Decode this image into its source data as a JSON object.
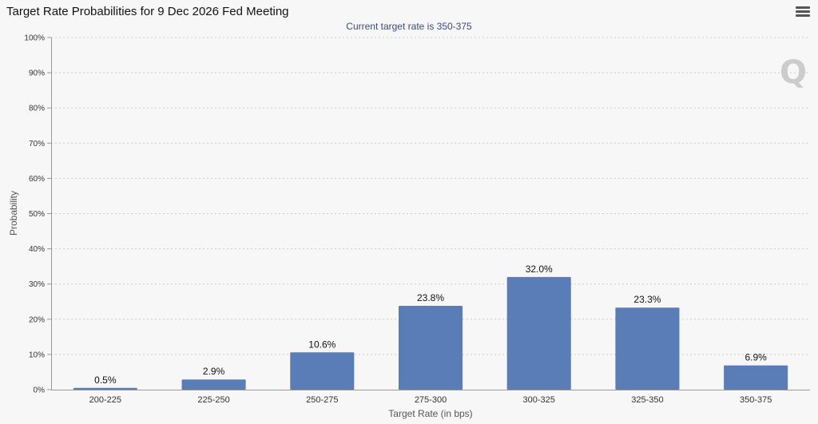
{
  "header": {
    "title": "Target Rate Probabilities for 9 Dec 2026 Fed Meeting",
    "subtitle": "Current target rate is 350-375",
    "menu_icon": "hamburger-menu-icon"
  },
  "watermark": {
    "text": "Q"
  },
  "colors": {
    "bar": "#5b7db7",
    "grid": "#cccccc",
    "axis": "#999999"
  },
  "chart_data": {
    "type": "bar",
    "title": "Target Rate Probabilities for 9 Dec 2026 Fed Meeting",
    "subtitle": "Current target rate is 350-375",
    "xlabel": "Target Rate (in bps)",
    "ylabel": "Probability",
    "categories": [
      "200-225",
      "225-250",
      "250-275",
      "275-300",
      "300-325",
      "325-350",
      "350-375"
    ],
    "values": [
      0.5,
      2.9,
      10.6,
      23.8,
      32.0,
      23.3,
      6.9
    ],
    "value_labels": [
      "0.5%",
      "2.9%",
      "10.6%",
      "23.8%",
      "32.0%",
      "23.3%",
      "6.9%"
    ],
    "ylim": [
      0,
      100
    ],
    "yticks": [
      "0%",
      "10%",
      "20%",
      "30%",
      "40%",
      "50%",
      "60%",
      "70%",
      "80%",
      "90%",
      "100%"
    ],
    "grid": "horizontal dotted",
    "legend": "none"
  }
}
